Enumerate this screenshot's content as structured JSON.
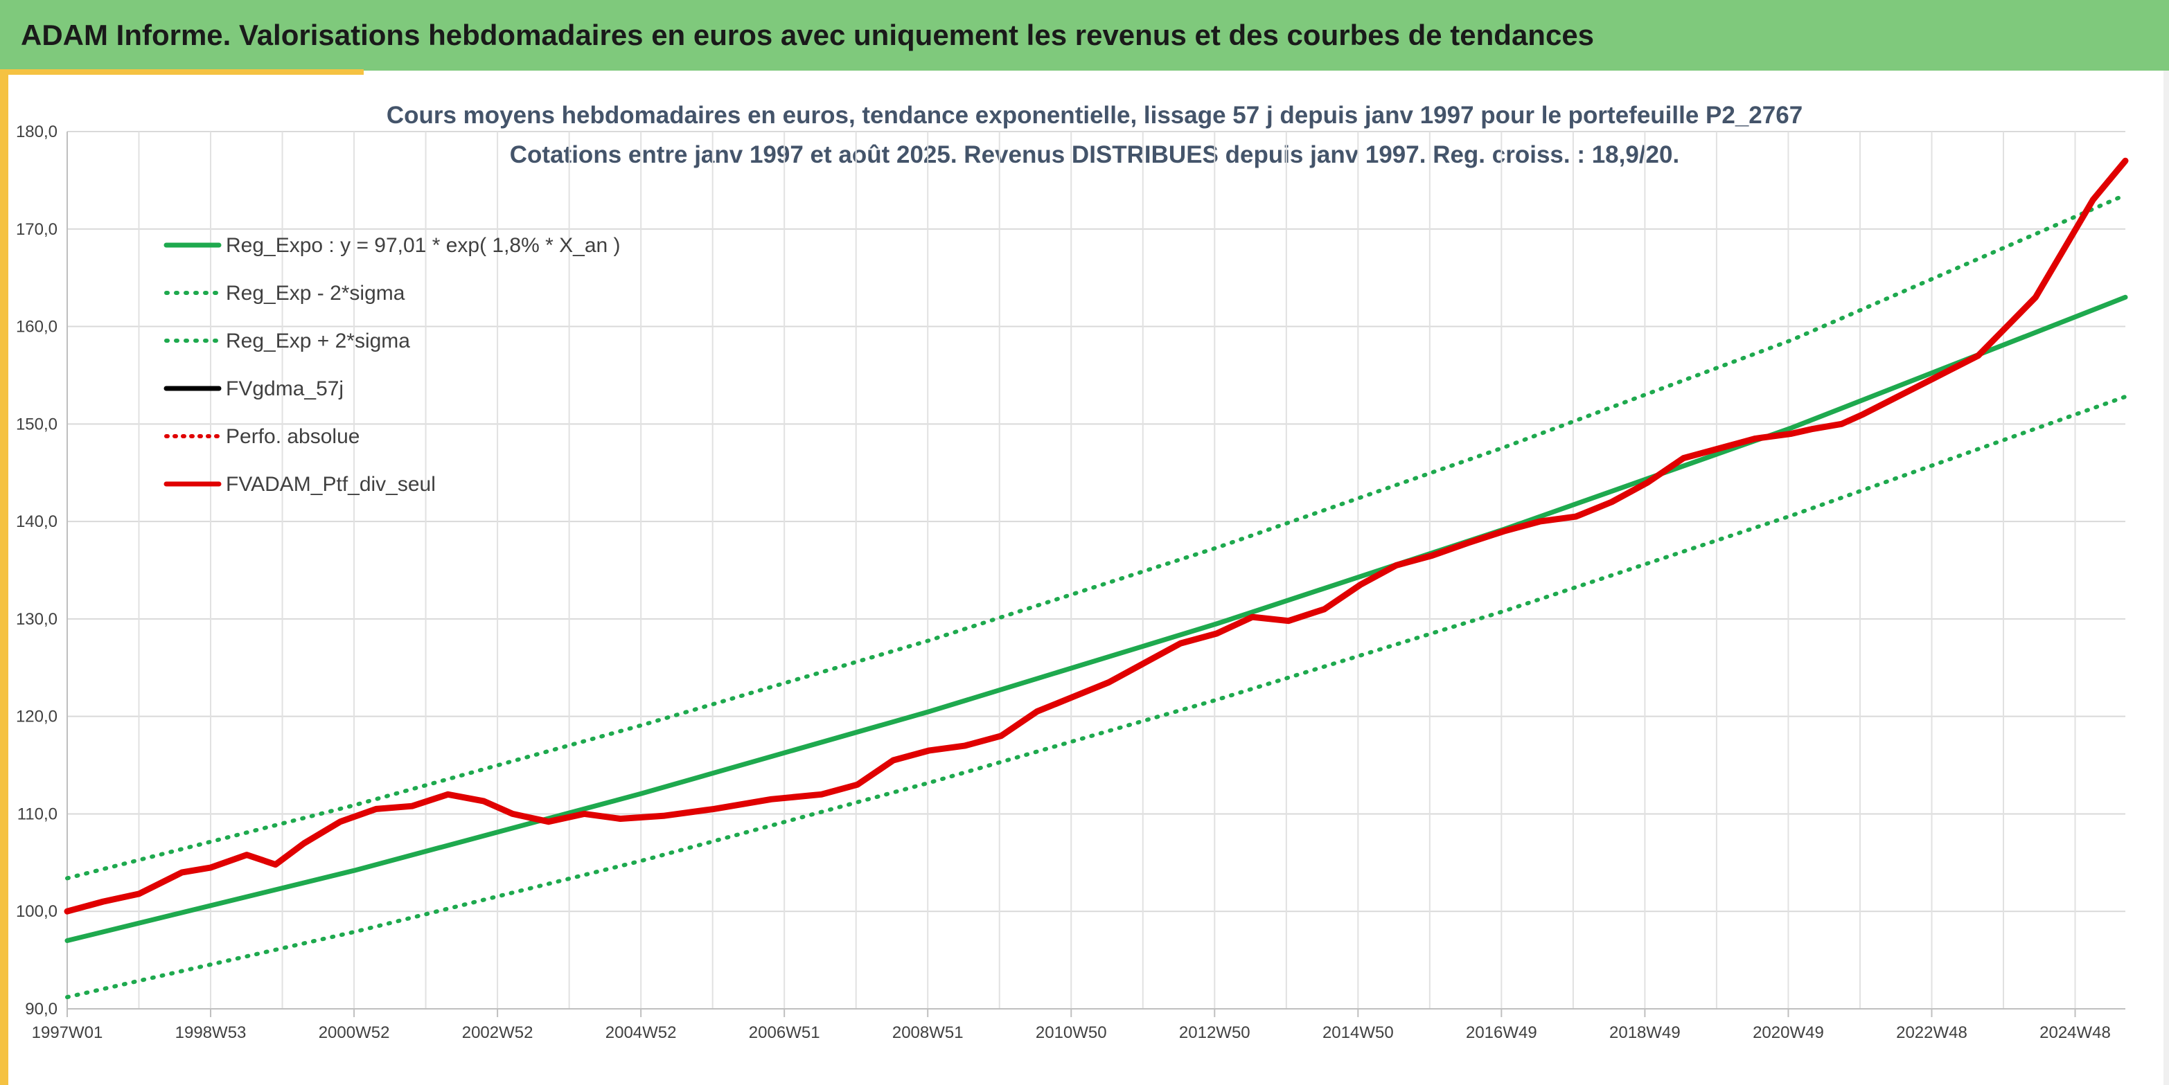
{
  "header": {
    "title": "ADAM Informe. Valorisations hebdomadaires en euros avec uniquement les revenus et des courbes de tendances"
  },
  "chart_data": {
    "type": "line",
    "title": "Cours moyens hebdomadaires en euros, tendance exponentielle, lissage 57 j depuis janv 1997 pour le portefeuille P2_2767",
    "subtitle": "Cotations entre janv 1997 et août 2025. Revenus DISTRIBUES depuis janv 1997. Reg. croiss. : 18,9/20.",
    "xlabel": "",
    "ylabel": "",
    "ylim": [
      90,
      180
    ],
    "yticks": [
      "90,0",
      "100,0",
      "110,0",
      "120,0",
      "130,0",
      "140,0",
      "150,0",
      "160,0",
      "170,0",
      "180,0"
    ],
    "xticks": [
      "1997W01",
      "1998W53",
      "2000W52",
      "2002W52",
      "2004W52",
      "2006W51",
      "2008W51",
      "2010W50",
      "2012W50",
      "2014W50",
      "2016W49",
      "2018W49",
      "2020W49",
      "2022W48",
      "2024W48"
    ],
    "x_start": 1997.0,
    "x_end": 2025.65,
    "grid": true,
    "legend_position": "top-left",
    "series": [
      {
        "name": "Reg_Expo : y = 97,01 * exp( 1,8% *  X_an )",
        "color": "#1ea94e",
        "style": "solid",
        "x": [
          1997.0,
          2001.0,
          2005.0,
          2009.0,
          2013.0,
          2017.0,
          2021.0,
          2025.65
        ],
        "values": [
          97.0,
          104.2,
          112.1,
          120.5,
          129.5,
          139.2,
          149.6,
          163.0
        ]
      },
      {
        "name": "Reg_Exp - 2*sigma",
        "color": "#1ea94e",
        "style": "dotted",
        "x": [
          1997.0,
          2001.0,
          2005.0,
          2009.0,
          2013.0,
          2017.0,
          2021.0,
          2025.65
        ],
        "values": [
          91.2,
          97.9,
          105.2,
          113.2,
          121.7,
          130.8,
          140.6,
          152.8
        ]
      },
      {
        "name": "Reg_Exp + 2*sigma",
        "color": "#1ea94e",
        "style": "dotted",
        "x": [
          1997.0,
          2001.0,
          2005.0,
          2009.0,
          2013.0,
          2017.0,
          2021.0,
          2025.65
        ],
        "values": [
          103.4,
          110.9,
          119.1,
          127.8,
          137.3,
          147.6,
          158.6,
          173.5
        ]
      },
      {
        "name": "FVgdma_57j",
        "color": "#000000",
        "style": "solid",
        "x": [
          1997.0,
          1997.5,
          1998.0,
          1998.6,
          1999.0,
          1999.5,
          1999.9,
          2000.3,
          2000.8,
          2001.3,
          2001.8,
          2002.3,
          2002.8,
          2003.2,
          2003.7,
          2004.2,
          2004.7,
          2005.3,
          2006.0,
          2006.8,
          2007.5,
          2008.0,
          2008.5,
          2009.0,
          2009.5,
          2010.0,
          2010.5,
          2011.0,
          2011.5,
          2012.0,
          2012.5,
          2013.0,
          2013.5,
          2014.0,
          2014.5,
          2015.0,
          2015.5,
          2016.0,
          2016.5,
          2017.0,
          2017.5,
          2018.0,
          2018.5,
          2019.0,
          2019.5,
          2020.0,
          2020.5,
          2021.0,
          2021.3,
          2021.7,
          2022.0,
          2022.4,
          2022.8,
          2023.2,
          2023.6,
          2024.0,
          2024.4,
          2024.8,
          2025.2,
          2025.65
        ],
        "values": [
          100.0,
          101.0,
          101.8,
          104.0,
          104.5,
          105.8,
          104.8,
          107.0,
          109.2,
          110.5,
          110.8,
          112.0,
          111.3,
          110.0,
          109.2,
          110.0,
          109.5,
          109.8,
          110.5,
          111.5,
          112.0,
          113.0,
          115.5,
          116.5,
          117.0,
          118.0,
          120.5,
          122.0,
          123.5,
          125.5,
          127.5,
          128.5,
          130.2,
          129.8,
          131.0,
          133.5,
          135.5,
          136.5,
          137.8,
          139.0,
          140.0,
          140.5,
          142.0,
          144.0,
          146.5,
          147.5,
          148.5,
          149.0,
          149.5,
          150.0,
          151.0,
          152.5,
          154.0,
          155.5,
          157.0,
          160.0,
          163.0,
          168.0,
          173.0,
          177.0
        ]
      },
      {
        "name": "Perfo. absolue",
        "color": "#e00000",
        "style": "dotted",
        "x": [
          1997.0,
          1997.5,
          1998.0,
          1998.6,
          1999.0,
          1999.5,
          1999.9,
          2000.3,
          2000.8,
          2001.3,
          2001.8,
          2002.3,
          2002.8,
          2003.2,
          2003.7,
          2004.2,
          2004.7,
          2005.3,
          2006.0,
          2006.8,
          2007.5,
          2008.0,
          2008.5,
          2009.0,
          2009.5,
          2010.0,
          2010.5,
          2011.0,
          2011.5,
          2012.0,
          2012.5,
          2013.0,
          2013.5,
          2014.0,
          2014.5,
          2015.0,
          2015.5,
          2016.0,
          2016.5,
          2017.0,
          2017.5,
          2018.0,
          2018.5,
          2019.0,
          2019.5,
          2020.0,
          2020.5,
          2021.0,
          2021.3,
          2021.7,
          2022.0,
          2022.4,
          2022.8,
          2023.2,
          2023.6,
          2024.0,
          2024.4,
          2024.8,
          2025.2,
          2025.65
        ],
        "values": [
          100.0,
          101.0,
          101.8,
          104.0,
          104.5,
          105.8,
          104.8,
          107.0,
          109.2,
          110.5,
          110.8,
          112.0,
          111.3,
          110.0,
          109.2,
          110.0,
          109.5,
          109.8,
          110.5,
          111.5,
          112.0,
          113.0,
          115.5,
          116.5,
          117.0,
          118.0,
          120.5,
          122.0,
          123.5,
          125.5,
          127.5,
          128.5,
          130.2,
          129.8,
          131.0,
          133.5,
          135.5,
          136.5,
          137.8,
          139.0,
          140.0,
          140.5,
          142.0,
          144.0,
          146.5,
          147.5,
          148.5,
          149.0,
          149.5,
          150.0,
          151.0,
          152.5,
          154.0,
          155.5,
          157.0,
          160.0,
          163.0,
          168.0,
          173.0,
          177.0
        ]
      },
      {
        "name": "FVADAM_Ptf_div_seul",
        "color": "#e00000",
        "style": "solid",
        "x": [
          1997.0,
          1997.5,
          1998.0,
          1998.6,
          1999.0,
          1999.5,
          1999.9,
          2000.3,
          2000.8,
          2001.3,
          2001.8,
          2002.3,
          2002.8,
          2003.2,
          2003.7,
          2004.2,
          2004.7,
          2005.3,
          2006.0,
          2006.8,
          2007.5,
          2008.0,
          2008.5,
          2009.0,
          2009.5,
          2010.0,
          2010.5,
          2011.0,
          2011.5,
          2012.0,
          2012.5,
          2013.0,
          2013.5,
          2014.0,
          2014.5,
          2015.0,
          2015.5,
          2016.0,
          2016.5,
          2017.0,
          2017.5,
          2018.0,
          2018.5,
          2019.0,
          2019.5,
          2020.0,
          2020.5,
          2021.0,
          2021.3,
          2021.7,
          2022.0,
          2022.4,
          2022.8,
          2023.2,
          2023.6,
          2024.0,
          2024.4,
          2024.8,
          2025.2,
          2025.65
        ],
        "values": [
          100.0,
          101.0,
          101.8,
          104.0,
          104.5,
          105.8,
          104.8,
          107.0,
          109.2,
          110.5,
          110.8,
          112.0,
          111.3,
          110.0,
          109.2,
          110.0,
          109.5,
          109.8,
          110.5,
          111.5,
          112.0,
          113.0,
          115.5,
          116.5,
          117.0,
          118.0,
          120.5,
          122.0,
          123.5,
          125.5,
          127.5,
          128.5,
          130.2,
          129.8,
          131.0,
          133.5,
          135.5,
          136.5,
          137.8,
          139.0,
          140.0,
          140.5,
          142.0,
          144.0,
          146.5,
          147.5,
          148.5,
          149.0,
          149.5,
          150.0,
          151.0,
          152.5,
          154.0,
          155.5,
          157.0,
          160.0,
          163.0,
          168.0,
          173.0,
          177.0
        ]
      }
    ]
  }
}
